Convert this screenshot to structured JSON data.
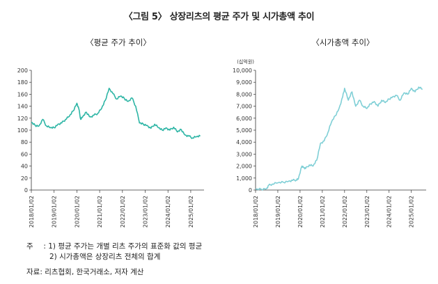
{
  "title": "〈그림 5〉 상장리츠의 평균 주가 및 시가총액 추이",
  "notes": {
    "prefix": "주",
    "line1": ": 1) 평균 주가는 개별 리츠 주가의 표준화 값의 평균",
    "line2": "2) 시가총액은 상장리츠 전체의 합계"
  },
  "source": "자료: 리츠협회, 한국거래소, 저자 계산",
  "colors": {
    "line": "#2db5a5",
    "light_line": "#7fcfd6",
    "axis": "#333333"
  },
  "chart_data": [
    {
      "type": "line",
      "title": "〈평균 주가 추이〉",
      "ylabel": "",
      "ylim": [
        0,
        200
      ],
      "yticks": [
        "0",
        "20",
        "40",
        "60",
        "80",
        "100",
        "120",
        "140",
        "160",
        "180",
        "200"
      ],
      "xticks": [
        "2018/01/02",
        "2019/01/02",
        "2020/01/02",
        "2021/01/02",
        "2022/01/02",
        "2023/01/02",
        "2024/01/02",
        "2025/01/02"
      ],
      "x": [
        "2018/01",
        "2018/03",
        "2018/05",
        "2018/07",
        "2018/09",
        "2018/11",
        "2019/01",
        "2019/03",
        "2019/05",
        "2019/07",
        "2019/09",
        "2019/11",
        "2020/01",
        "2020/02",
        "2020/03",
        "2020/04",
        "2020/06",
        "2020/08",
        "2020/10",
        "2020/12",
        "2021/02",
        "2021/04",
        "2021/06",
        "2021/08",
        "2021/10",
        "2021/12",
        "2022/02",
        "2022/04",
        "2022/06",
        "2022/08",
        "2022/10",
        "2022/12",
        "2023/02",
        "2023/04",
        "2023/06",
        "2023/08",
        "2023/10",
        "2023/12",
        "2024/02",
        "2024/04",
        "2024/06",
        "2024/08",
        "2024/10",
        "2024/12",
        "2025/02",
        "2025/04",
        "2025/06"
      ],
      "series": [
        {
          "values": [
            113,
            108,
            107,
            118,
            107,
            104,
            104,
            110,
            112,
            118,
            123,
            132,
            145,
            136,
            118,
            122,
            130,
            122,
            125,
            128,
            136,
            150,
            170,
            161,
            152,
            157,
            153,
            148,
            154,
            140,
            112,
            110,
            108,
            103,
            110,
            104,
            100,
            104,
            100,
            105,
            97,
            101,
            92,
            90,
            87,
            89,
            90
          ]
        }
      ]
    },
    {
      "type": "line",
      "title": "〈시가총액 추이〉",
      "ylabel": "(십억원)",
      "ylim": [
        0,
        10000
      ],
      "yticks": [
        "0",
        "1,000",
        "2,000",
        "3,000",
        "4,000",
        "5,000",
        "6,000",
        "7,000",
        "8,000",
        "9,000",
        "10,000"
      ],
      "xticks": [
        "2018/01/02",
        "2019/01/02",
        "2020/01/02",
        "2021/01/02",
        "2022/01/02",
        "2023/01/02",
        "2024/01/02",
        "2025/01/02"
      ],
      "x": [
        "2018/01",
        "2018/04",
        "2018/07",
        "2018/08",
        "2018/10",
        "2019/01",
        "2019/04",
        "2019/07",
        "2019/09",
        "2019/11",
        "2019/12",
        "2020/02",
        "2020/03",
        "2020/04",
        "2020/06",
        "2020/08",
        "2020/10",
        "2020/12",
        "2021/02",
        "2021/04",
        "2021/06",
        "2021/08",
        "2021/10",
        "2021/12",
        "2022/01",
        "2022/03",
        "2022/05",
        "2022/07",
        "2022/09",
        "2022/11",
        "2023/01",
        "2023/03",
        "2023/05",
        "2023/07",
        "2023/09",
        "2023/11",
        "2024/01",
        "2024/03",
        "2024/05",
        "2024/07",
        "2024/09",
        "2024/11",
        "2025/01",
        "2025/03",
        "2025/05",
        "2025/07"
      ],
      "series": [
        {
          "values": [
            50,
            70,
            120,
            380,
            500,
            600,
            650,
            750,
            800,
            850,
            900,
            2000,
            1900,
            1800,
            2100,
            2000,
            2500,
            3900,
            4100,
            4800,
            5700,
            6200,
            6800,
            7800,
            8500,
            7500,
            8200,
            7000,
            7500,
            7000,
            6800,
            7200,
            7400,
            7000,
            7500,
            7300,
            7600,
            7800,
            7900,
            7500,
            8100,
            8000,
            8500,
            8200,
            8600,
            8400
          ]
        }
      ]
    }
  ]
}
